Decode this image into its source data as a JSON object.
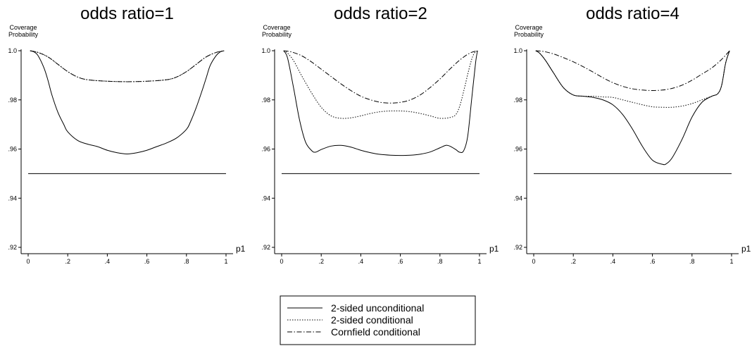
{
  "chart_data": [
    {
      "type": "line",
      "title": "odds ratio=1",
      "ylabel": [
        "Coverage",
        "Probability"
      ],
      "xlabel": "p1",
      "xlim": [
        0,
        1
      ],
      "ylim": [
        0.92,
        1.0
      ],
      "xticks": [
        0,
        0.2,
        0.4,
        0.6,
        0.8,
        1
      ],
      "xtick_labels": [
        "0",
        ".2",
        ".4",
        ".6",
        ".8",
        "1"
      ],
      "yticks": [
        0.92,
        0.94,
        0.96,
        0.98,
        1.0
      ],
      "ytick_labels": [
        ".92",
        ".94",
        ".96",
        ".98",
        "1.0"
      ],
      "reference_line": 0.95,
      "series": [
        {
          "name": "2-sided unconditional",
          "style": "solid",
          "x": [
            0.01,
            0.03,
            0.05,
            0.08,
            0.1,
            0.12,
            0.15,
            0.18,
            0.2,
            0.25,
            0.3,
            0.35,
            0.4,
            0.45,
            0.5,
            0.55,
            0.6,
            0.65,
            0.7,
            0.75,
            0.8,
            0.82,
            0.85,
            0.88,
            0.9,
            0.92,
            0.95,
            0.97,
            0.99
          ],
          "y": [
            1.0,
            0.9995,
            0.998,
            0.993,
            0.988,
            0.982,
            0.975,
            0.97,
            0.967,
            0.9635,
            0.962,
            0.961,
            0.9595,
            0.9585,
            0.958,
            0.9585,
            0.9595,
            0.961,
            0.9625,
            0.9645,
            0.968,
            0.971,
            0.977,
            0.984,
            0.989,
            0.994,
            0.998,
            0.9995,
            1.0
          ]
        },
        {
          "name": "2-sided conditional",
          "style": "dotted",
          "x": [
            0.01,
            0.05,
            0.1,
            0.15,
            0.2,
            0.25,
            0.3,
            0.4,
            0.5,
            0.6,
            0.7,
            0.75,
            0.8,
            0.85,
            0.9,
            0.95,
            0.99
          ],
          "y": [
            1.0,
            0.9993,
            0.9975,
            0.9945,
            0.9915,
            0.9893,
            0.9882,
            0.9876,
            0.9874,
            0.9876,
            0.9882,
            0.9893,
            0.9915,
            0.9945,
            0.9975,
            0.9993,
            1.0
          ]
        },
        {
          "name": "Cornfield conditional",
          "style": "dashdot",
          "x": [
            0.01,
            0.05,
            0.1,
            0.15,
            0.2,
            0.25,
            0.3,
            0.4,
            0.5,
            0.6,
            0.7,
            0.75,
            0.8,
            0.85,
            0.9,
            0.95,
            0.99
          ],
          "y": [
            1.0,
            0.9993,
            0.9975,
            0.9945,
            0.9915,
            0.9893,
            0.9882,
            0.9876,
            0.9874,
            0.9876,
            0.9882,
            0.9893,
            0.9915,
            0.9945,
            0.9975,
            0.9993,
            1.0
          ]
        }
      ]
    },
    {
      "type": "line",
      "title": "odds ratio=2",
      "ylabel": [
        "Coverage",
        "Probability"
      ],
      "xlabel": "p1",
      "xlim": [
        0,
        1
      ],
      "ylim": [
        0.92,
        1.0
      ],
      "xticks": [
        0,
        0.2,
        0.4,
        0.6,
        0.8,
        1
      ],
      "xtick_labels": [
        "0",
        ".2",
        ".4",
        ".6",
        ".8",
        "1"
      ],
      "yticks": [
        0.92,
        0.94,
        0.96,
        0.98,
        1.0
      ],
      "ytick_labels": [
        ".92",
        ".94",
        ".96",
        ".98",
        "1.0"
      ],
      "reference_line": 0.95,
      "series": [
        {
          "name": "2-sided unconditional",
          "style": "solid",
          "x": [
            0.01,
            0.03,
            0.06,
            0.09,
            0.12,
            0.15,
            0.17,
            0.2,
            0.25,
            0.3,
            0.35,
            0.4,
            0.45,
            0.5,
            0.55,
            0.6,
            0.65,
            0.7,
            0.75,
            0.8,
            0.83,
            0.85,
            0.88,
            0.9,
            0.92,
            0.94,
            0.96,
            0.98,
            0.99
          ],
          "y": [
            1.0,
            0.997,
            0.985,
            0.972,
            0.963,
            0.9595,
            0.9587,
            0.9598,
            0.9612,
            0.9615,
            0.9608,
            0.9595,
            0.9585,
            0.9578,
            0.9575,
            0.9574,
            0.9575,
            0.9579,
            0.9588,
            0.9605,
            0.9615,
            0.9612,
            0.9598,
            0.9587,
            0.9593,
            0.965,
            0.98,
            0.995,
            1.0
          ]
        },
        {
          "name": "2-sided conditional",
          "style": "dotted",
          "x": [
            0.01,
            0.03,
            0.06,
            0.1,
            0.15,
            0.2,
            0.25,
            0.3,
            0.35,
            0.4,
            0.45,
            0.5,
            0.55,
            0.6,
            0.65,
            0.7,
            0.75,
            0.8,
            0.85,
            0.88,
            0.9,
            0.92,
            0.95,
            0.97,
            0.99
          ],
          "y": [
            1.0,
            0.999,
            0.996,
            0.99,
            0.983,
            0.977,
            0.9735,
            0.9725,
            0.9727,
            0.9735,
            0.9745,
            0.9752,
            0.9755,
            0.9755,
            0.9752,
            0.9745,
            0.9735,
            0.9725,
            0.9728,
            0.974,
            0.9775,
            0.9835,
            0.9935,
            0.9985,
            1.0
          ]
        },
        {
          "name": "Cornfield conditional",
          "style": "dashdot",
          "x": [
            0.01,
            0.05,
            0.1,
            0.15,
            0.2,
            0.25,
            0.3,
            0.35,
            0.4,
            0.45,
            0.5,
            0.55,
            0.6,
            0.65,
            0.7,
            0.75,
            0.8,
            0.85,
            0.9,
            0.95,
            0.99
          ],
          "y": [
            1.0,
            0.9995,
            0.998,
            0.9955,
            0.9925,
            0.9895,
            0.9865,
            0.9838,
            0.9815,
            0.98,
            0.979,
            0.9787,
            0.979,
            0.98,
            0.982,
            0.985,
            0.9885,
            0.9925,
            0.9962,
            0.999,
            1.0
          ]
        }
      ]
    },
    {
      "type": "line",
      "title": "odds ratio=4",
      "ylabel": [
        "Coverage",
        "Probability"
      ],
      "xlabel": "p1",
      "xlim": [
        0,
        1
      ],
      "ylim": [
        0.92,
        1.0
      ],
      "xticks": [
        0,
        0.2,
        0.4,
        0.6,
        0.8,
        1
      ],
      "xtick_labels": [
        "0",
        ".2",
        ".4",
        ".6",
        ".8",
        "1"
      ],
      "yticks": [
        0.92,
        0.94,
        0.96,
        0.98,
        1.0
      ],
      "ytick_labels": [
        ".92",
        ".94",
        ".96",
        ".98",
        "1.0"
      ],
      "reference_line": 0.95,
      "series": [
        {
          "name": "2-sided unconditional",
          "style": "solid",
          "x": [
            0.01,
            0.03,
            0.06,
            0.1,
            0.15,
            0.2,
            0.25,
            0.3,
            0.35,
            0.4,
            0.45,
            0.5,
            0.55,
            0.6,
            0.65,
            0.67,
            0.7,
            0.75,
            0.8,
            0.85,
            0.9,
            0.93,
            0.95,
            0.97,
            0.99
          ],
          "y": [
            1.0,
            0.999,
            0.996,
            0.991,
            0.985,
            0.982,
            0.9815,
            0.981,
            0.98,
            0.978,
            0.974,
            0.968,
            0.961,
            0.9555,
            0.9538,
            0.954,
            0.9565,
            0.964,
            0.973,
            0.979,
            0.9815,
            0.9825,
            0.986,
            0.995,
            1.0
          ]
        },
        {
          "name": "2-sided conditional",
          "style": "dotted",
          "x": [
            0.01,
            0.03,
            0.06,
            0.1,
            0.15,
            0.2,
            0.25,
            0.3,
            0.35,
            0.4,
            0.45,
            0.5,
            0.55,
            0.6,
            0.65,
            0.7,
            0.75,
            0.8,
            0.85,
            0.9,
            0.93,
            0.95,
            0.97,
            0.99
          ],
          "y": [
            1.0,
            0.999,
            0.996,
            0.991,
            0.985,
            0.982,
            0.9815,
            0.9815,
            0.9812,
            0.981,
            0.98,
            0.979,
            0.978,
            0.9772,
            0.977,
            0.977,
            0.9775,
            0.9785,
            0.98,
            0.9815,
            0.9825,
            0.986,
            0.995,
            1.0
          ]
        },
        {
          "name": "Cornfield conditional",
          "style": "dashdot",
          "x": [
            0.01,
            0.05,
            0.1,
            0.15,
            0.2,
            0.25,
            0.3,
            0.35,
            0.4,
            0.45,
            0.5,
            0.55,
            0.6,
            0.65,
            0.7,
            0.75,
            0.8,
            0.85,
            0.9,
            0.95,
            0.99
          ],
          "y": [
            1.0,
            0.9997,
            0.9987,
            0.9972,
            0.9955,
            0.9935,
            0.9913,
            0.989,
            0.987,
            0.9855,
            0.9845,
            0.984,
            0.9838,
            0.984,
            0.9847,
            0.986,
            0.988,
            0.9905,
            0.993,
            0.9965,
            1.0
          ]
        }
      ]
    }
  ],
  "legend": {
    "placement": "bottom-center",
    "entries": [
      {
        "label": "2-sided unconditional",
        "style": "solid"
      },
      {
        "label": "2-sided conditional",
        "style": "dotted"
      },
      {
        "label": "Cornfield conditional",
        "style": "dashdot"
      }
    ]
  }
}
